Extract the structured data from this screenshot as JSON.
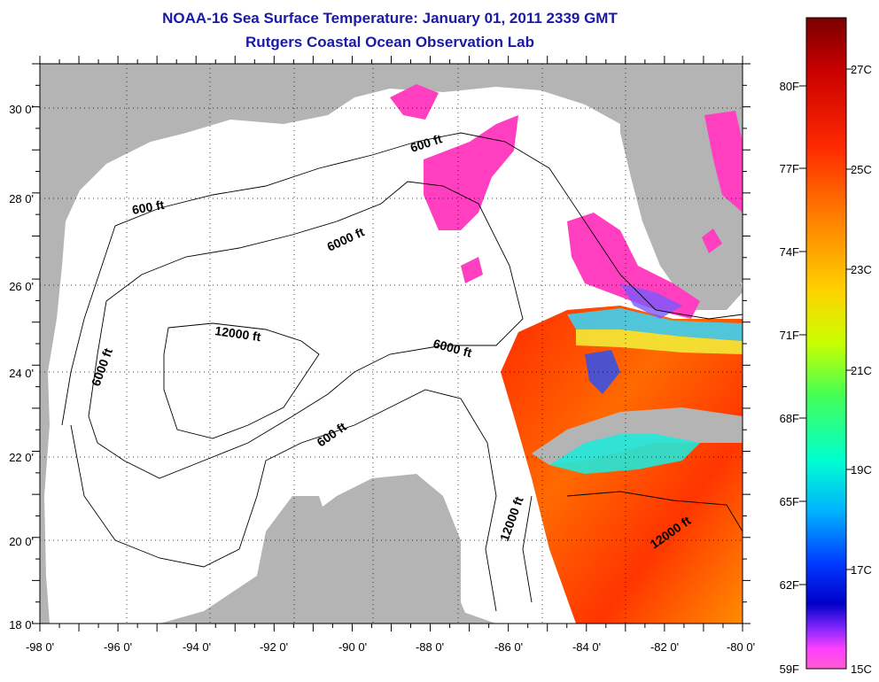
{
  "title": "NOAA-16 Sea Surface Temperature:  January 01, 2011 2339 GMT",
  "subtitle": "Rutgers Coastal Ocean Observation Lab",
  "map": {
    "lon_labels": [
      "-98 0'",
      "-96 0'",
      "-94 0'",
      "-92 0'",
      "-90 0'",
      "-88 0'",
      "-86 0'",
      "-84 0'",
      "-82 0'",
      "-80 0'"
    ],
    "lat_labels": [
      "30 0'",
      "28 0'",
      "26 0'",
      "24 0'",
      "22 0'",
      "20 0'",
      "18 0'"
    ],
    "lon_range": [
      -98,
      -80
    ],
    "lat_range": [
      18,
      31
    ],
    "land_color": "#b4b4b4",
    "water_color": "#ffffff",
    "contour_labels": [
      "600 ft",
      "600 ft",
      "6000 ft",
      "6000 ft",
      "12000 ft",
      "6000 ft",
      "600 ft",
      "12000 ft",
      "12000 ft"
    ]
  },
  "colorbar": {
    "f_labels": [
      "80F",
      "77F",
      "74F",
      "71F",
      "68F",
      "65F",
      "62F",
      "59F"
    ],
    "c_labels": [
      "27C",
      "25C",
      "23C",
      "21C",
      "19C",
      "17C",
      "15C"
    ],
    "colors": [
      "#7a0000",
      "#c80000",
      "#ff2a00",
      "#ff7a00",
      "#ffd200",
      "#c8ff00",
      "#44ff55",
      "#00ffd0",
      "#00b0ff",
      "#0038ff",
      "#0000c8",
      "#8a28ff",
      "#ff40ff",
      "#ff5ad2"
    ]
  }
}
